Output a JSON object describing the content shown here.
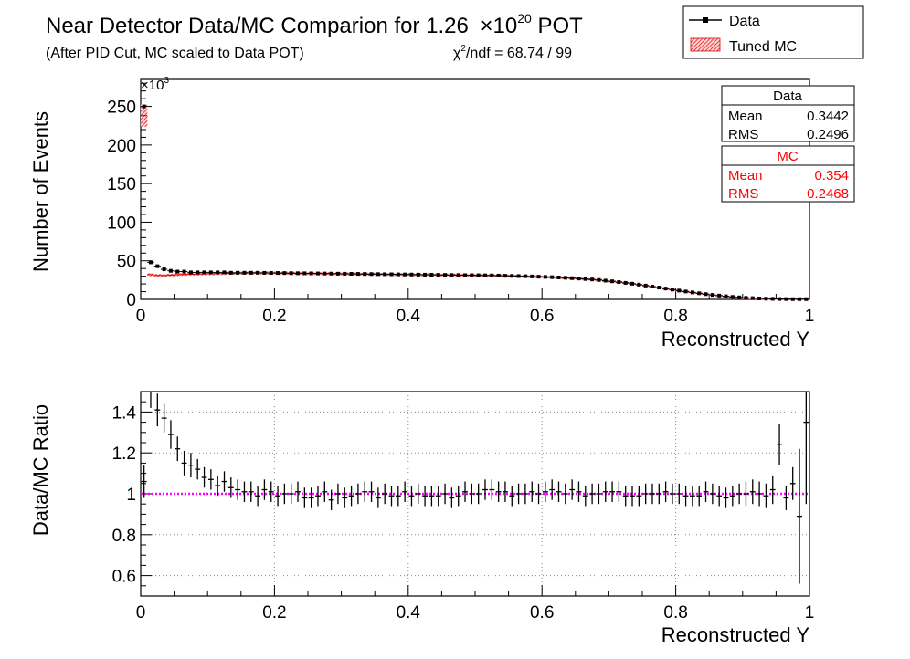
{
  "header": {
    "title": "Near Detector Data/MC Comparion for 1.26",
    "title_exponent_prefix": "×10",
    "title_exponent": "20",
    "title_suffix": " POT",
    "subtitle": "(After PID Cut, MC scaled to Data POT)",
    "chi2_symbol": "χ",
    "chi2_power": "2",
    "chi2_text": "/ndf = 68.74 / 99"
  },
  "legend": {
    "placement": "top-right",
    "entries": [
      {
        "label": "Data",
        "color": "#000000",
        "style": "line-marker"
      },
      {
        "label": "Tuned MC",
        "color": "#cc0000",
        "style": "hatched-fill"
      }
    ]
  },
  "stats": [
    {
      "title": "Data",
      "color": "#000000",
      "rows": [
        {
          "key": "Mean",
          "value": "0.3442"
        },
        {
          "key": "RMS",
          "value": "0.2496"
        }
      ]
    },
    {
      "title": "MC",
      "color": "#ff0000",
      "rows": [
        {
          "key": "Mean",
          "value": "0.354"
        },
        {
          "key": "RMS",
          "value": "0.2468"
        }
      ]
    }
  ],
  "colors": {
    "data": "#000000",
    "mc": "#ee0000",
    "ratio_line": "#ff00ff",
    "grid": "#888888"
  },
  "chart_data": [
    {
      "type": "line",
      "panel": "upper",
      "xlabel": "Reconstructed Y",
      "ylabel": "Number of Events",
      "y_multiplier_prefix": "×10",
      "y_multiplier_exp": "3",
      "xlim": [
        0,
        1
      ],
      "ylim": [
        0,
        285
      ],
      "grid": false,
      "x_ticks": [
        "0",
        "0.2",
        "0.4",
        "0.6",
        "0.8",
        "1"
      ],
      "y_ticks": [
        "0",
        "50",
        "100",
        "150",
        "200",
        "250"
      ],
      "series": [
        {
          "name": "Data",
          "x": [
            0.005,
            0.015,
            0.025,
            0.035,
            0.045,
            0.055,
            0.065,
            0.075,
            0.085,
            0.095,
            0.105,
            0.115,
            0.125,
            0.135,
            0.145,
            0.155,
            0.165,
            0.175,
            0.185,
            0.195,
            0.205,
            0.215,
            0.225,
            0.235,
            0.245,
            0.255,
            0.265,
            0.275,
            0.285,
            0.295,
            0.305,
            0.315,
            0.325,
            0.335,
            0.345,
            0.355,
            0.365,
            0.375,
            0.385,
            0.395,
            0.405,
            0.415,
            0.425,
            0.435,
            0.445,
            0.455,
            0.465,
            0.475,
            0.485,
            0.495,
            0.505,
            0.515,
            0.525,
            0.535,
            0.545,
            0.555,
            0.565,
            0.575,
            0.585,
            0.595,
            0.605,
            0.615,
            0.625,
            0.635,
            0.645,
            0.655,
            0.665,
            0.675,
            0.685,
            0.695,
            0.705,
            0.715,
            0.725,
            0.735,
            0.745,
            0.755,
            0.765,
            0.775,
            0.785,
            0.795,
            0.805,
            0.815,
            0.825,
            0.835,
            0.845,
            0.855,
            0.865,
            0.875,
            0.885,
            0.895,
            0.905,
            0.915,
            0.925,
            0.935,
            0.945,
            0.955,
            0.965,
            0.975,
            0.985,
            0.995
          ],
          "values": [
            250,
            48,
            43,
            39,
            37,
            36,
            36,
            35,
            35,
            35,
            35,
            35,
            35,
            34.5,
            34.5,
            34.5,
            34.5,
            34.5,
            34.4,
            34.3,
            34.2,
            34.1,
            34,
            33.9,
            33.8,
            33.7,
            33.6,
            33.5,
            33.4,
            33.3,
            33.2,
            33.1,
            33,
            32.9,
            32.8,
            32.7,
            32.6,
            32.5,
            32.4,
            32.3,
            32.2,
            32.1,
            32,
            31.9,
            31.8,
            31.7,
            31.6,
            31.5,
            31.4,
            31.3,
            31.2,
            31.1,
            31,
            30.8,
            30.6,
            30.4,
            30.2,
            30,
            29.7,
            29.4,
            29.1,
            28.8,
            28.4,
            28,
            27.5,
            27,
            26.4,
            25.8,
            25.1,
            24.3,
            23.4,
            22.4,
            21.4,
            20.3,
            19.1,
            17.9,
            16.6,
            15.3,
            14,
            12.7,
            11.4,
            10.2,
            9,
            7.9,
            6.8,
            5.8,
            4.9,
            4,
            3.2,
            2.6,
            2,
            1.6,
            1.2,
            0.9,
            0.7,
            0.5,
            0.4,
            0.3,
            0.3,
            0.3
          ]
        },
        {
          "name": "Tuned MC",
          "x": [
            0.005,
            0.015,
            0.025,
            0.035,
            0.045,
            0.055,
            0.065,
            0.075,
            0.085,
            0.095,
            0.105,
            0.115,
            0.125,
            0.135,
            0.145,
            0.155,
            0.165,
            0.175,
            0.185,
            0.195,
            0.205,
            0.215,
            0.225,
            0.235,
            0.245,
            0.255,
            0.265,
            0.275,
            0.285,
            0.295,
            0.305,
            0.315,
            0.325,
            0.335,
            0.345,
            0.355,
            0.365,
            0.375,
            0.385,
            0.395,
            0.405,
            0.415,
            0.425,
            0.435,
            0.445,
            0.455,
            0.465,
            0.475,
            0.485,
            0.495,
            0.505,
            0.515,
            0.525,
            0.535,
            0.545,
            0.555,
            0.565,
            0.575,
            0.585,
            0.595,
            0.605,
            0.615,
            0.625,
            0.635,
            0.645,
            0.655,
            0.665,
            0.675,
            0.685,
            0.695,
            0.705,
            0.715,
            0.725,
            0.735,
            0.745,
            0.755,
            0.765,
            0.775,
            0.785,
            0.795,
            0.805,
            0.815,
            0.825,
            0.835,
            0.845,
            0.855,
            0.865,
            0.875,
            0.885,
            0.895,
            0.905,
            0.915,
            0.925,
            0.935,
            0.945,
            0.955,
            0.965,
            0.975,
            0.985,
            0.995
          ],
          "values": [
            238,
            32,
            31,
            31,
            31.5,
            32,
            32.3,
            32.6,
            32.8,
            33,
            33.2,
            33.4,
            33.6,
            33.8,
            34,
            34.1,
            34.2,
            34.2,
            34.2,
            34.1,
            34,
            33.9,
            33.8,
            33.7,
            33.6,
            33.5,
            33.4,
            33.3,
            33.2,
            33.1,
            33,
            32.9,
            32.8,
            32.7,
            32.6,
            32.5,
            32.4,
            32.3,
            32.2,
            32.1,
            32,
            31.9,
            31.8,
            31.7,
            31.6,
            31.5,
            31.4,
            31.3,
            31.2,
            31.1,
            31,
            30.9,
            30.8,
            30.6,
            30.4,
            30.2,
            30,
            29.8,
            29.5,
            29.2,
            28.9,
            28.6,
            28.2,
            27.8,
            27.3,
            26.8,
            26.2,
            25.6,
            24.9,
            24.1,
            23.2,
            22.3,
            21.3,
            20.2,
            19,
            17.8,
            16.5,
            15.2,
            13.9,
            12.6,
            11.3,
            10.1,
            8.9,
            7.8,
            6.7,
            5.7,
            4.8,
            3.9,
            3.2,
            2.5,
            1.9,
            1.5,
            1.1,
            0.8,
            0.6,
            0.5,
            0.4,
            0.3,
            0.3,
            0.3
          ]
        }
      ]
    },
    {
      "type": "scatter",
      "panel": "lower",
      "xlabel": "Reconstructed Y",
      "ylabel": "Data/MC Ratio",
      "xlim": [
        0,
        1
      ],
      "ylim": [
        0.5,
        1.5
      ],
      "grid": true,
      "reference_line": 1.0,
      "x_ticks": [
        "0",
        "0.2",
        "0.4",
        "0.6",
        "0.8",
        "1"
      ],
      "y_ticks": [
        "0.6",
        "0.8",
        "1",
        "1.2",
        "1.4"
      ],
      "series": [
        {
          "name": "Data/MC",
          "x": [
            0.005,
            0.015,
            0.025,
            0.035,
            0.045,
            0.055,
            0.065,
            0.075,
            0.085,
            0.095,
            0.105,
            0.115,
            0.125,
            0.135,
            0.145,
            0.155,
            0.165,
            0.175,
            0.185,
            0.195,
            0.205,
            0.215,
            0.225,
            0.235,
            0.245,
            0.255,
            0.265,
            0.275,
            0.285,
            0.295,
            0.305,
            0.315,
            0.325,
            0.335,
            0.345,
            0.355,
            0.365,
            0.375,
            0.385,
            0.395,
            0.405,
            0.415,
            0.425,
            0.435,
            0.445,
            0.455,
            0.465,
            0.475,
            0.485,
            0.495,
            0.505,
            0.515,
            0.525,
            0.535,
            0.545,
            0.555,
            0.565,
            0.575,
            0.585,
            0.595,
            0.605,
            0.615,
            0.625,
            0.635,
            0.645,
            0.655,
            0.665,
            0.675,
            0.685,
            0.695,
            0.705,
            0.715,
            0.725,
            0.735,
            0.745,
            0.755,
            0.765,
            0.775,
            0.785,
            0.795,
            0.805,
            0.815,
            0.825,
            0.835,
            0.845,
            0.855,
            0.865,
            0.875,
            0.885,
            0.895,
            0.905,
            0.915,
            0.925,
            0.935,
            0.945,
            0.955,
            0.965,
            0.975,
            0.985,
            0.995
          ],
          "values": [
            1.06,
            1.52,
            1.41,
            1.37,
            1.29,
            1.22,
            1.15,
            1.14,
            1.12,
            1.08,
            1.07,
            1.04,
            1.06,
            1.03,
            1.02,
            1.01,
            1.01,
            0.99,
            1.02,
            1.01,
            0.99,
            1.0,
            1.0,
            1.01,
            0.98,
            0.98,
            0.99,
            1.01,
            0.97,
            1.0,
            0.98,
            0.99,
            1.0,
            1.01,
            1.01,
            0.98,
            1.0,
            0.99,
            0.99,
            1.01,
            0.99,
            1.0,
            0.99,
            0.99,
            0.99,
            1.0,
            0.98,
            0.99,
            1.01,
            1.0,
            1.0,
            1.02,
            1.02,
            1.01,
            1.01,
            0.99,
            1.0,
            1.0,
            1.01,
            1.0,
            1.01,
            1.02,
            1.01,
            1.0,
            1.02,
            1.01,
            0.99,
            1.0,
            1.0,
            1.01,
            1.01,
            1.01,
            0.99,
            0.99,
            0.99,
            1.0,
            1.0,
            1.0,
            1.01,
            1.0,
            1.0,
            0.99,
            0.99,
            0.99,
            1.01,
            1.0,
            0.99,
            0.98,
            0.99,
            1.0,
            1.0,
            1.01,
            1.0,
            0.99,
            1.02,
            1.24,
            0.98,
            1.05,
            0.89,
            1.35
          ],
          "errors": [
            0.08,
            0.1,
            0.08,
            0.07,
            0.07,
            0.06,
            0.06,
            0.06,
            0.05,
            0.05,
            0.05,
            0.05,
            0.05,
            0.05,
            0.05,
            0.05,
            0.05,
            0.05,
            0.05,
            0.05,
            0.05,
            0.05,
            0.05,
            0.05,
            0.05,
            0.05,
            0.05,
            0.05,
            0.05,
            0.05,
            0.05,
            0.05,
            0.05,
            0.05,
            0.05,
            0.05,
            0.05,
            0.05,
            0.05,
            0.05,
            0.05,
            0.05,
            0.05,
            0.05,
            0.05,
            0.05,
            0.05,
            0.05,
            0.05,
            0.05,
            0.05,
            0.05,
            0.05,
            0.05,
            0.05,
            0.05,
            0.05,
            0.05,
            0.05,
            0.05,
            0.05,
            0.05,
            0.05,
            0.05,
            0.05,
            0.05,
            0.05,
            0.05,
            0.05,
            0.05,
            0.05,
            0.05,
            0.05,
            0.05,
            0.05,
            0.05,
            0.05,
            0.05,
            0.05,
            0.05,
            0.05,
            0.05,
            0.05,
            0.05,
            0.05,
            0.05,
            0.05,
            0.05,
            0.05,
            0.05,
            0.06,
            0.06,
            0.06,
            0.06,
            0.07,
            0.1,
            0.06,
            0.08,
            0.33,
            0.4
          ]
        }
      ]
    }
  ]
}
